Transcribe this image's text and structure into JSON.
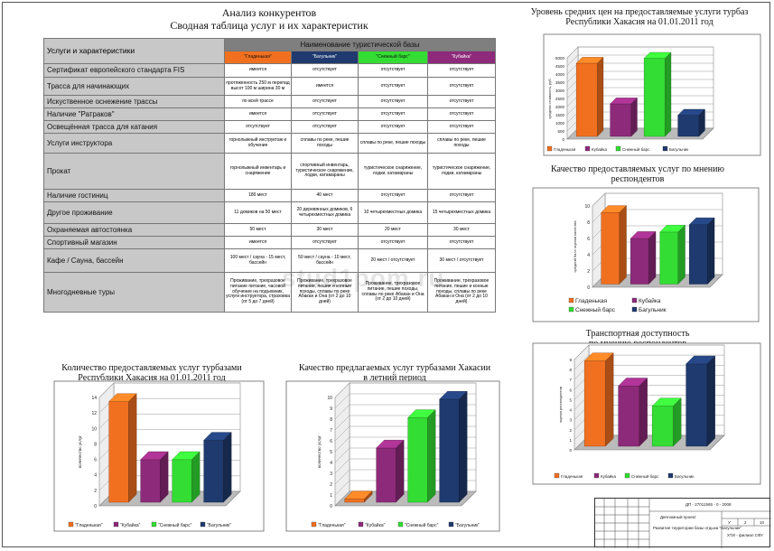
{
  "header": {
    "title": "Анализ конкурентов",
    "subtitle": "Сводная таблица услуг и их характеристик"
  },
  "table": {
    "row_header": "Услуги и характеристики",
    "group_header": "Наименование туристической базы",
    "bases": [
      {
        "name": "\"Гладенькая\"",
        "color": "#f07020"
      },
      {
        "name": "\"Багульник\"",
        "color": "#1f3a6e"
      },
      {
        "name": "\"Снежный барс\"",
        "color": "#33dd33"
      },
      {
        "name": "\"Кубайка\"",
        "color": "#8e2a7a"
      }
    ],
    "rows": [
      {
        "label": "Сертификат европейского стандарта FIS",
        "cells": [
          "имеется",
          "отсутствует",
          "отсутствует",
          "отсутствует"
        ]
      },
      {
        "label": "Трасса для начинающих",
        "cells": [
          "протяженность 250 м перепад высот 100 м ширина 30 м",
          "имеется",
          "отсутствует",
          "отсутствует"
        ]
      },
      {
        "label": "Искуственное оснежение трассы",
        "cells": [
          "по всей трассе",
          "отсутствует",
          "отсутствует",
          "отсутствует"
        ]
      },
      {
        "label": "Наличие \"Ратраков\"",
        "cells": [
          "имеется",
          "отсутствует",
          "отсутствует",
          "отсутствует"
        ]
      },
      {
        "label": "Освещённая трасса для катания",
        "cells": [
          "отсутствует",
          "отсутствует",
          "отсутствует",
          "отсутствует"
        ]
      },
      {
        "label": "Услуги инструктора",
        "cells": [
          "горнолыжный инструктаж и обучение",
          "сплавы по реке, пешие походы",
          "сплавы по реке, пешие походы",
          "сплавы по реке, пешие походы"
        ]
      },
      {
        "label": "Прокат",
        "cells": [
          "горнолыжный инвентарь и снаряжение",
          "спортивный инвентарь, туристическое снаряжение, лодки, катамараны",
          "туристическое снаряжение, лодки, катамараны",
          "туристическое снаряжение, лодки, катамараны"
        ]
      },
      {
        "label": "Наличие гостиниц",
        "cells": [
          "180 мест",
          "40 мест",
          "отсутствует",
          "отсутствует"
        ]
      },
      {
        "label": "Другое проживание",
        "cells": [
          "11 домиков на 50 мест",
          "20 деревянных домиков, 6 четырехместных домика",
          "10 четырехместных домика",
          "15 четырехместных домика"
        ]
      },
      {
        "label": "Охраняемая автостоянка",
        "cells": [
          "50 мест",
          "30 мест",
          "20 мест",
          "30 мест"
        ]
      },
      {
        "label": "Спортивный магазин",
        "cells": [
          "имеется",
          "отсутствует",
          "отсутствует",
          "отсутствует"
        ]
      },
      {
        "label": "Кафе / Сауна, бассейн",
        "cells": [
          "100 мест / сауна - 15 мест, бассейн",
          "50 мест / сауна - 10 мест, бассейн",
          "20 мест / отсутствует",
          "30 мест / отсутствует"
        ]
      },
      {
        "label": "Многодневные туры",
        "cells": [
          "Проживание, трехразовое питание питание, часовой обучение на подъемник, услуги инструктора, страховка (от 5 до 7 дней)",
          "Проживание, трехразовое питание, пешие и конные походы, сплавы по реке Абакан и Она (от 2 до 10 дней)",
          "Проживание, трехразовое питание, пешие походы, сплавы по реке Абакан и Она (от 2 до 10 дней)",
          "Проживание, трехразовое питание, пешие и конные походы, сплавы по реке Абакан и Она (от 2 до 10 дней)"
        ]
      }
    ]
  },
  "watermark": "stud1pom.ru",
  "stamp": {
    "code": "ДП - 27011565 - 0 - 2008",
    "work": "Дипломный проект",
    "topic": "Развитие территории базы отдыха \"Багульник\"",
    "org": "ХТИ - филиал СФУ",
    "cols": [
      "У",
      "2",
      "10"
    ]
  },
  "chart_data": [
    {
      "id": "prices",
      "type": "bar",
      "title": "Уровень средних цен на предоставляемые услуги турбаз Республики Хакасия на 01.01.2011 год",
      "ylabel": "средняя стоимость, руб.",
      "ylim": [
        0,
        5000
      ],
      "yticks": [
        0,
        500,
        1000,
        1500,
        2000,
        2500,
        3000,
        3500,
        4000,
        4500,
        5000
      ],
      "series": [
        {
          "name": "Гладенькая",
          "value": 4500,
          "color": "#f07020"
        },
        {
          "name": "Кубайка",
          "value": 2000,
          "color": "#8e2a7a"
        },
        {
          "name": "Снежный барс",
          "value": 4800,
          "color": "#33dd33"
        },
        {
          "name": "Багульник",
          "value": 1300,
          "color": "#1f3a6e"
        }
      ]
    },
    {
      "id": "quality",
      "type": "bar",
      "title": "Качество предоставляемых услуг по мнению респондентов",
      "ylabel": "средний балл оценки качества",
      "ylim": [
        0,
        10
      ],
      "yticks": [
        0,
        2,
        4,
        6,
        8,
        10
      ],
      "series": [
        {
          "name": "Гладенькая",
          "value": 8.8,
          "color": "#f07020"
        },
        {
          "name": "Кубайка",
          "value": 5.6,
          "color": "#8e2a7a"
        },
        {
          "name": "Снежный барс",
          "value": 6.4,
          "color": "#33dd33"
        },
        {
          "name": "Багульник",
          "value": 7.3,
          "color": "#1f3a6e"
        }
      ]
    },
    {
      "id": "transport",
      "type": "bar",
      "title": "Транспортная доступность по мнению респондентов",
      "ylabel": "оценка респондентов",
      "ylim": [
        0,
        9
      ],
      "yticks": [
        0,
        1,
        2,
        3,
        4,
        5,
        6,
        7,
        8,
        9
      ],
      "series": [
        {
          "name": "Гладенькая",
          "value": 8.5,
          "color": "#f07020"
        },
        {
          "name": "Кубайка",
          "value": 6.0,
          "color": "#8e2a7a"
        },
        {
          "name": "Снежный барс",
          "value": 4.0,
          "color": "#33dd33"
        },
        {
          "name": "Багульник",
          "value": 8.2,
          "color": "#1f3a6e"
        }
      ]
    },
    {
      "id": "count",
      "type": "bar",
      "title": "Количество предоставляемых услуг турбазами Республики Хакасия на 01.01.2011 год",
      "ylabel": "количество услуг",
      "ylim": [
        0,
        14
      ],
      "yticks": [
        0,
        2,
        4,
        6,
        8,
        10,
        12,
        14
      ],
      "series": [
        {
          "name": "\"Гладенькая\"",
          "value": 13,
          "color": "#f07020"
        },
        {
          "name": "\"Кубайка\"",
          "value": 5.5,
          "color": "#8e2a7a"
        },
        {
          "name": "\"Снежный барс\"",
          "value": 5.5,
          "color": "#33dd33"
        },
        {
          "name": "\"Багульник\"",
          "value": 8,
          "color": "#1f3a6e"
        }
      ]
    },
    {
      "id": "summer",
      "type": "bar",
      "title": "Качество предлагаемых услуг турбазами Хакасии в летний период",
      "ylabel": "количество услуг",
      "ylim": [
        0,
        10
      ],
      "yticks": [
        0,
        1,
        2,
        3,
        4,
        5,
        6,
        7,
        8,
        9,
        10
      ],
      "series": [
        {
          "name": "\"Гладенькая\"",
          "value": 0.3,
          "color": "#f07020"
        },
        {
          "name": "\"Кубайка\"",
          "value": 5,
          "color": "#8e2a7a"
        },
        {
          "name": "\"Снежный барс\"",
          "value": 7.8,
          "color": "#33dd33"
        },
        {
          "name": "\"Багульник\"",
          "value": 9.5,
          "color": "#1f3a6e"
        }
      ]
    }
  ]
}
